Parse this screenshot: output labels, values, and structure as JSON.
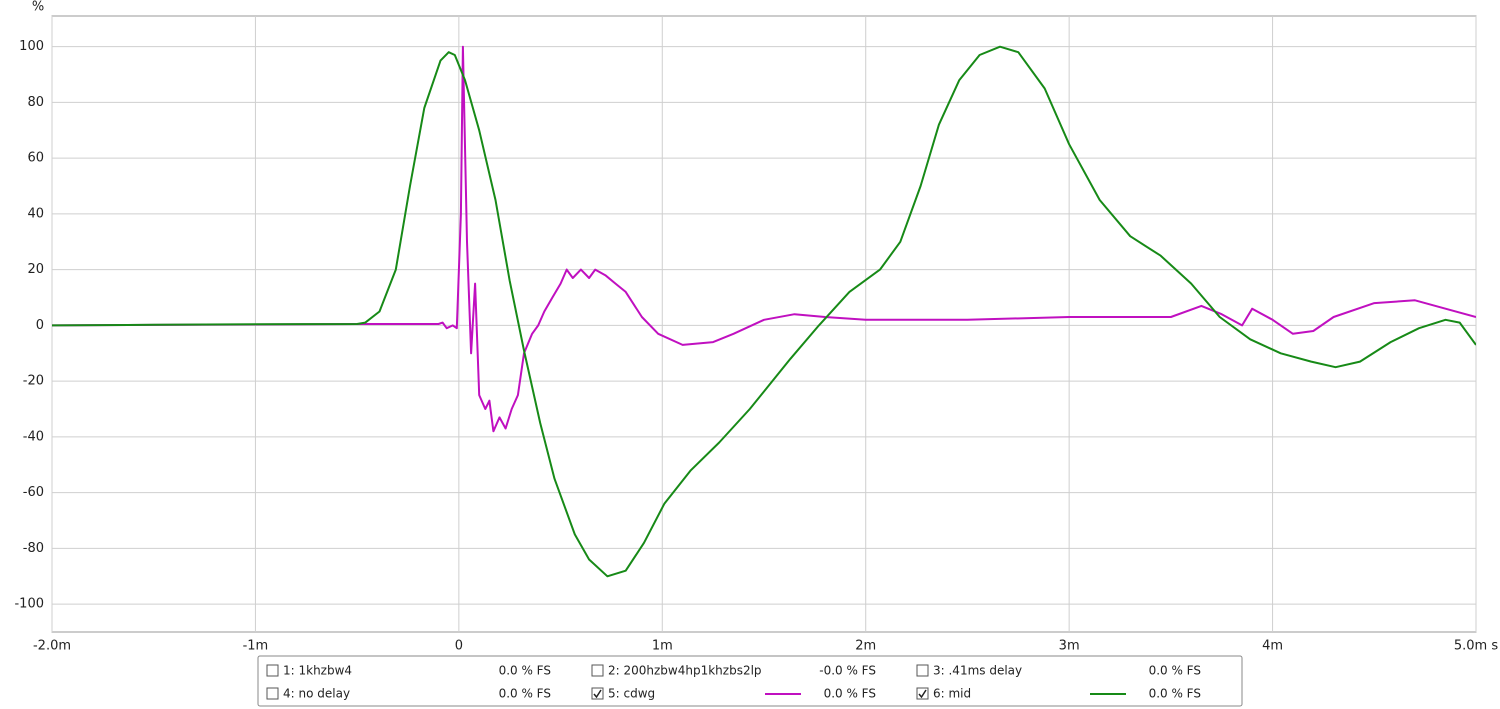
{
  "chart_data": {
    "type": "line",
    "y_label": "%",
    "xlim": [
      -2,
      5
    ],
    "ylim": [
      -110,
      111
    ],
    "xticks": [
      {
        "value": -2,
        "label": "-2.0m"
      },
      {
        "value": -1,
        "label": "-1m"
      },
      0,
      {
        "value": 1,
        "label": "1m"
      },
      {
        "value": 2,
        "label": "2m"
      },
      {
        "value": 3,
        "label": "3m"
      },
      {
        "value": 4,
        "label": "4m"
      },
      {
        "value": 5,
        "label": "5.0m s"
      }
    ],
    "yticks": [
      100,
      80,
      60,
      40,
      20,
      0,
      -20,
      -40,
      -60,
      -80,
      -100
    ],
    "grid": true,
    "series": [
      {
        "name": "1: 1khzbw4",
        "color": "#e01010",
        "checked": false,
        "readout": "0.0 % FS"
      },
      {
        "name": "2: 200hzbw4hp1khzbs2lp",
        "color": "#0a8f8f",
        "checked": false,
        "readout": "-0.0 % FS"
      },
      {
        "name": "3: .41ms delay",
        "color": "#a030b0",
        "checked": false,
        "readout": "0.0 % FS"
      },
      {
        "name": "4: no delay",
        "color": "#9030c0",
        "checked": false,
        "readout": "0.0 % FS"
      },
      {
        "name": "5: cdwg",
        "color": "#c010c0",
        "checked": true,
        "readout": "0.0 % FS",
        "x": [
          -2,
          -0.5,
          -0.3,
          -0.1,
          -0.08,
          -0.06,
          -0.03,
          -0.01,
          0.01,
          0.02,
          0.04,
          0.06,
          0.08,
          0.1,
          0.13,
          0.15,
          0.17,
          0.2,
          0.23,
          0.26,
          0.29,
          0.32,
          0.36,
          0.39,
          0.42,
          0.46,
          0.5,
          0.53,
          0.56,
          0.6,
          0.64,
          0.67,
          0.72,
          0.77,
          0.82,
          0.9,
          0.98,
          1.1,
          1.25,
          1.35,
          1.5,
          1.65,
          1.8,
          2.0,
          2.5,
          3.0,
          3.3,
          3.5,
          3.65,
          3.75,
          3.85,
          3.9,
          4.0,
          4.1,
          4.2,
          4.3,
          4.5,
          4.7,
          4.85,
          5.0
        ],
        "values": [
          0,
          0.5,
          0.5,
          0.5,
          1,
          -1,
          0,
          -1,
          40,
          100,
          30,
          -10,
          15,
          -25,
          -30,
          -27,
          -38,
          -33,
          -37,
          -30,
          -25,
          -10,
          -3,
          0,
          5,
          10,
          15,
          20,
          17,
          20,
          17,
          20,
          18,
          15,
          12,
          3,
          -3,
          -7,
          -6,
          -3,
          2,
          4,
          3,
          2,
          2,
          3,
          3,
          3,
          7,
          4,
          0,
          6,
          2,
          -3,
          -2,
          3,
          8,
          9,
          6,
          3
        ]
      },
      {
        "name": "6: mid",
        "color": "#178a17",
        "checked": true,
        "readout": "0.0 % FS",
        "x": [
          -2,
          -1.5,
          -1,
          -0.5,
          -0.46,
          -0.39,
          -0.31,
          -0.24,
          -0.17,
          -0.09,
          -0.05,
          -0.02,
          0.03,
          0.1,
          0.18,
          0.25,
          0.32,
          0.4,
          0.47,
          0.57,
          0.64,
          0.73,
          0.82,
          0.91,
          1.01,
          1.14,
          1.28,
          1.43,
          1.63,
          1.77,
          1.92,
          2.07,
          2.17,
          2.27,
          2.36,
          2.46,
          2.56,
          2.66,
          2.75,
          2.88,
          3.0,
          3.15,
          3.3,
          3.45,
          3.6,
          3.74,
          3.89,
          4.04,
          4.19,
          4.31,
          4.43,
          4.58,
          4.72,
          4.85,
          4.92,
          5.0
        ],
        "values": [
          0,
          0.2,
          0.4,
          0.5,
          1,
          5,
          20,
          50,
          78,
          95,
          98,
          97,
          88,
          70,
          45,
          16,
          -9,
          -35,
          -55,
          -75,
          -84,
          -90,
          -88,
          -78,
          -64,
          -52,
          -42,
          -30,
          -12,
          0,
          12,
          20,
          30,
          50,
          72,
          88,
          97,
          100,
          98,
          85,
          65,
          45,
          32,
          25,
          15,
          3,
          -5,
          -10,
          -13,
          -15,
          -13,
          -6,
          -1,
          2,
          1,
          -7
        ]
      }
    ]
  }
}
